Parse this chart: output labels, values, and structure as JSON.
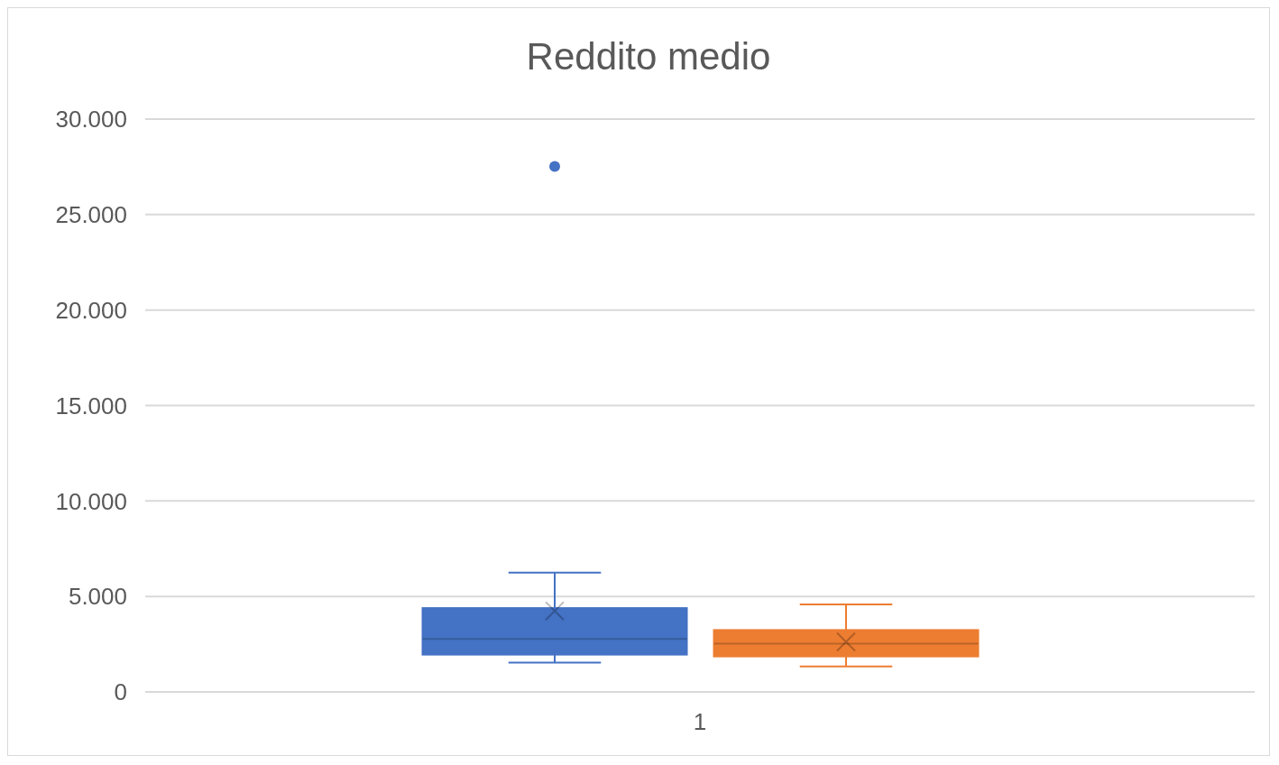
{
  "chart_data": {
    "type": "box",
    "title": "Reddito medio",
    "categories": [
      "1"
    ],
    "series": [
      {
        "color": "#4472c4",
        "boxes": [
          {
            "low": 1530,
            "q1": 1955,
            "median": 2770,
            "q3": 4390,
            "high": 6250,
            "mean": 4240,
            "outliers": [
              27520
            ]
          }
        ]
      },
      {
        "color": "#ed7d31",
        "boxes": [
          {
            "low": 1340,
            "q1": 1860,
            "median": 2530,
            "q3": 3240,
            "high": 4580,
            "mean": 2620
          }
        ]
      }
    ],
    "ylim": [
      0,
      30000
    ],
    "yticks": [
      {
        "value": 0,
        "label": "0"
      },
      {
        "value": 5000,
        "label": "5.000"
      },
      {
        "value": 10000,
        "label": "10.000"
      },
      {
        "value": 15000,
        "label": "15.000"
      },
      {
        "value": 20000,
        "label": "20.000"
      },
      {
        "value": 25000,
        "label": "25.000"
      },
      {
        "value": 30000,
        "label": "30.000"
      }
    ],
    "grid": "y"
  }
}
